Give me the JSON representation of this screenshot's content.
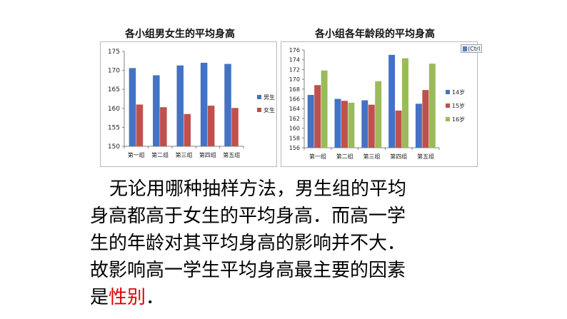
{
  "charts": [
    {
      "title": "各小组男女生的平均身高",
      "chart_data": {
        "type": "bar",
        "categories": [
          "第一组",
          "第二组",
          "第三组",
          "第四组",
          "第五组"
        ],
        "series": [
          {
            "name": "男生",
            "color": "#4472c4",
            "values": [
              170.6,
              168.7,
              171.3,
              172.0,
              171.7
            ]
          },
          {
            "name": "女生",
            "color": "#c0504d",
            "values": [
              161.0,
              160.3,
              158.5,
              160.7,
              160.1
            ]
          }
        ],
        "ylim": [
          150,
          175
        ],
        "yticks": [
          150,
          155,
          160,
          165,
          170,
          175
        ],
        "grid": false,
        "legend": "right"
      }
    },
    {
      "title": "各小组各年龄段的平均身高",
      "chart_data": {
        "type": "bar",
        "categories": [
          "第一组",
          "第二组",
          "第三组",
          "第四组",
          "第五组"
        ],
        "series": [
          {
            "name": "14岁",
            "color": "#4472c4",
            "values": [
              166.8,
              166.0,
              165.7,
              175.0,
              165.0
            ]
          },
          {
            "name": "15岁",
            "color": "#c0504d",
            "values": [
              168.8,
              165.6,
              164.8,
              163.6,
              167.8
            ]
          },
          {
            "name": "16岁",
            "color": "#9bbb59",
            "values": [
              171.8,
              165.2,
              169.6,
              174.3,
              173.2
            ]
          }
        ],
        "ylim": [
          156,
          176
        ],
        "yticks": [
          156,
          158,
          160,
          162,
          164,
          166,
          168,
          170,
          172,
          174,
          176
        ],
        "grid": false,
        "legend": "right"
      }
    }
  ],
  "paste_options": {
    "label": "(Ctrl",
    "icon": "clipboard-icon"
  },
  "paragraph": {
    "lines": [
      "无论用哪种抽样方法，男生组的平均",
      "身高都高于女生的平均身高．而高一学",
      "生的年龄对其平均身高的影响并不大．",
      "故影响高一学生平均身高最主要的因素"
    ],
    "last_prefix": "是",
    "highlight": "性别",
    "last_suffix": "．",
    "highlight_color": "#e00000"
  }
}
